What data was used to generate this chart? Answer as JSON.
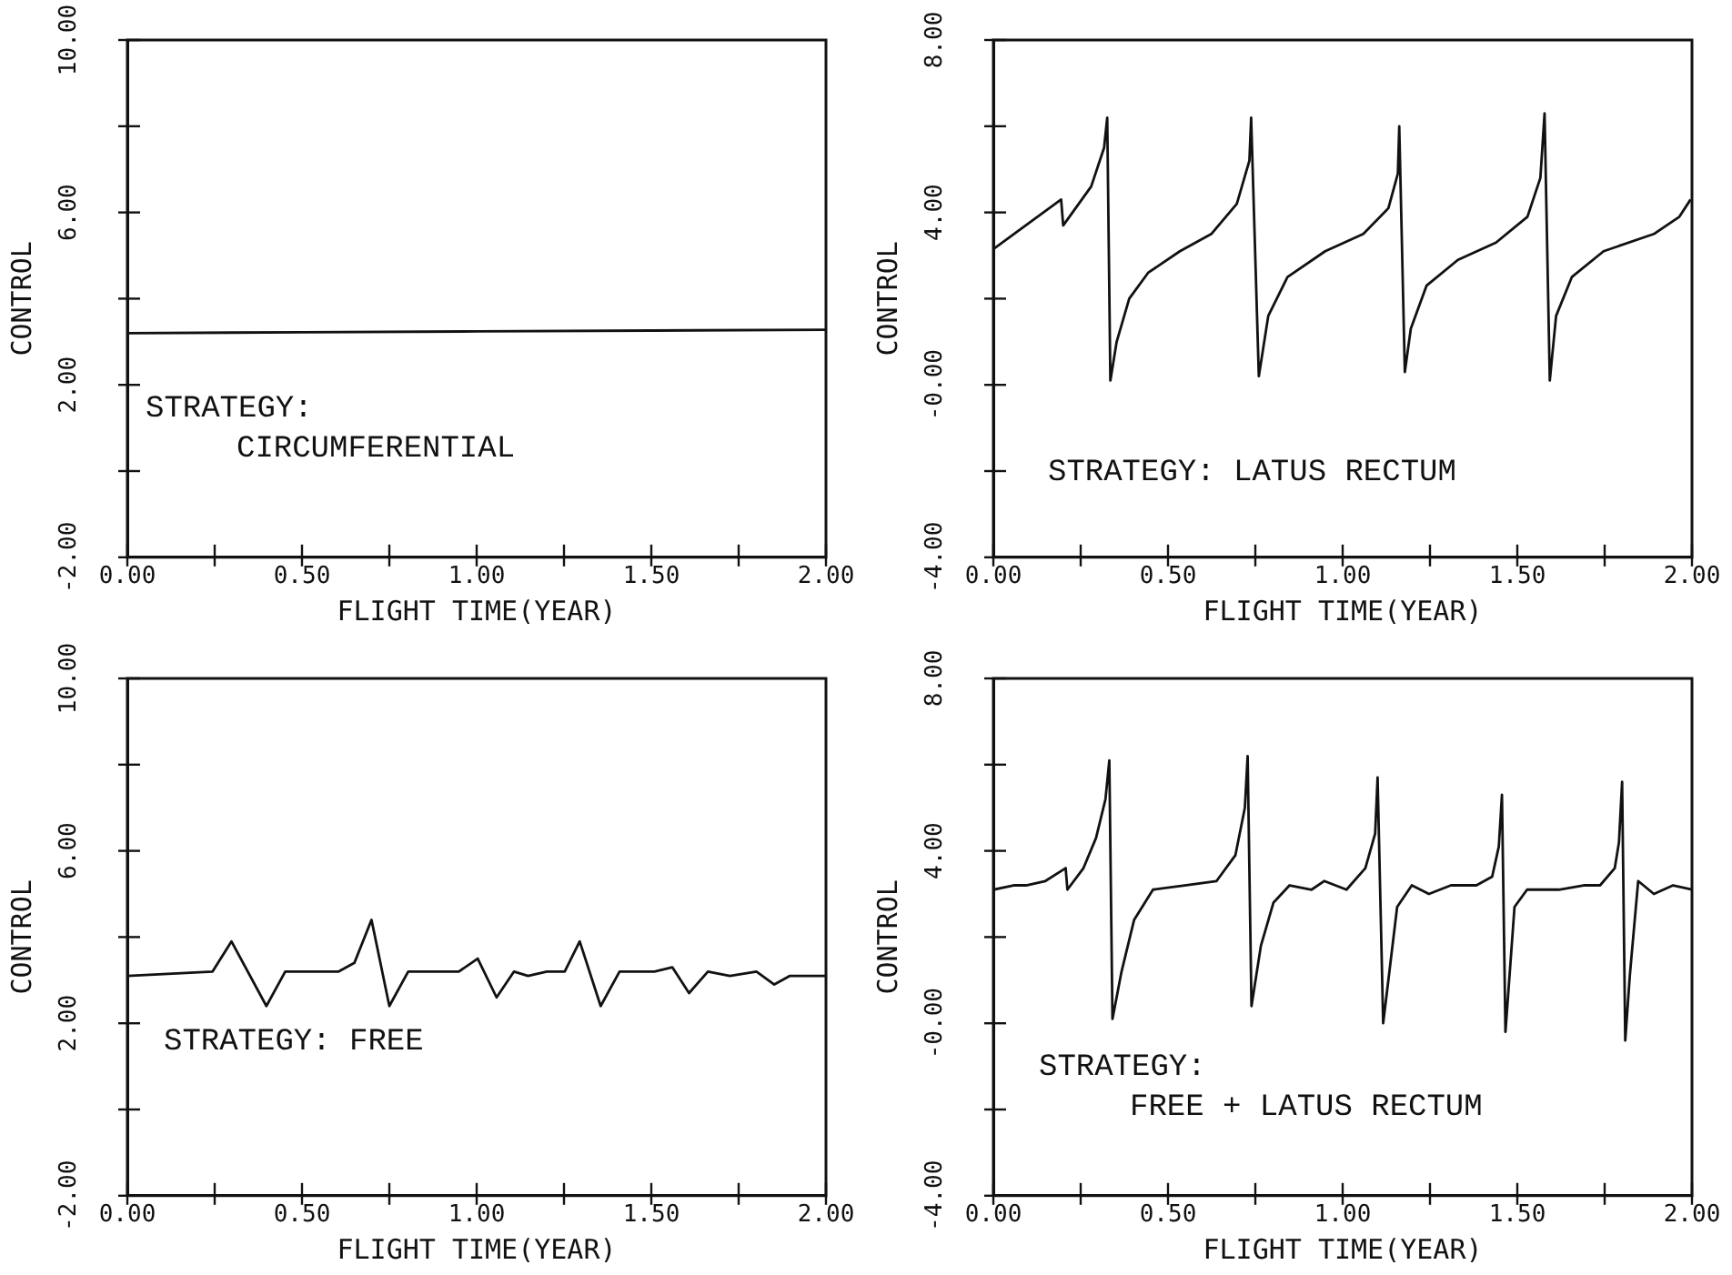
{
  "chart_data": [
    {
      "type": "line",
      "xlabel": "FLIGHT TIME(YEAR)",
      "ylabel": "CONTROL",
      "annotations": [
        "STRATEGY:\nCIRCUMFERENTIAL"
      ],
      "color": "#111111",
      "marker": "none",
      "grid": false,
      "x": [
        0,
        0.5,
        1,
        1.5,
        2
      ],
      "values": [
        3.2,
        3.22,
        3.24,
        3.26,
        3.28
      ],
      "xlim": [
        0,
        2
      ],
      "ylim": [
        -2,
        10
      ],
      "xticks": [
        {
          "value": 0,
          "label": "0.00"
        },
        {
          "value": 0.25,
          "label": null
        },
        {
          "value": 0.5,
          "label": "0.50"
        },
        {
          "value": 0.75,
          "label": null
        },
        {
          "value": 1,
          "label": "1.00"
        },
        {
          "value": 1.25,
          "label": null
        },
        {
          "value": 1.5,
          "label": "1.50"
        },
        {
          "value": 1.75,
          "label": null
        },
        {
          "value": 2,
          "label": "2.00"
        }
      ],
      "yticks": [
        {
          "value": -2,
          "label": "-2.00"
        },
        {
          "value": 0,
          "label": null
        },
        {
          "value": 2,
          "label": "2.00"
        },
        {
          "value": 4,
          "label": null
        },
        {
          "value": 6,
          "label": "6.00"
        },
        {
          "value": 8,
          "label": null
        },
        {
          "value": 10,
          "label": "10.00"
        }
      ]
    },
    {
      "type": "line",
      "xlabel": "FLIGHT TIME(YEAR)",
      "ylabel": "CONTROL",
      "annotations": [
        "STRATEGY: LATUS RECTUM"
      ],
      "color": "#111111",
      "marker": "none",
      "grid": false,
      "x": [
        0,
        0.194,
        0.2,
        0.28,
        0.317,
        0.326,
        0.335,
        0.353,
        0.389,
        0.443,
        0.534,
        0.624,
        0.697,
        0.733,
        0.738,
        0.76,
        0.787,
        0.842,
        0.95,
        1.059,
        1.131,
        1.158,
        1.162,
        1.178,
        1.195,
        1.24,
        1.33,
        1.439,
        1.529,
        1.566,
        1.578,
        1.593,
        1.611,
        1.656,
        1.747,
        1.891,
        1.964,
        1.996
      ],
      "values": [
        3.15,
        4.3,
        3.7,
        4.6,
        5.5,
        6.2,
        0.1,
        1,
        2,
        2.6,
        3.1,
        3.5,
        4.2,
        5.2,
        6.2,
        0.2,
        1.6,
        2.5,
        3.1,
        3.5,
        4.1,
        4.9,
        6,
        0.3,
        1.3,
        2.3,
        2.9,
        3.3,
        3.9,
        4.8,
        6.3,
        0.1,
        1.6,
        2.5,
        3.1,
        3.5,
        3.9,
        4.3
      ],
      "xlim": [
        0,
        2
      ],
      "ylim": [
        -4,
        8
      ],
      "xticks": [
        {
          "value": 0,
          "label": "0.00"
        },
        {
          "value": 0.25,
          "label": null
        },
        {
          "value": 0.5,
          "label": "0.50"
        },
        {
          "value": 0.75,
          "label": null
        },
        {
          "value": 1,
          "label": "1.00"
        },
        {
          "value": 1.25,
          "label": null
        },
        {
          "value": 1.5,
          "label": "1.50"
        },
        {
          "value": 1.75,
          "label": null
        },
        {
          "value": 2,
          "label": "2.00"
        }
      ],
      "yticks": [
        {
          "value": -4,
          "label": "-4.00"
        },
        {
          "value": -2,
          "label": null
        },
        {
          "value": 0,
          "label": "-0.00"
        },
        {
          "value": 2,
          "label": null
        },
        {
          "value": 4,
          "label": "4.00"
        },
        {
          "value": 6,
          "label": null
        },
        {
          "value": 8,
          "label": "8.00"
        }
      ]
    },
    {
      "type": "line",
      "xlabel": "FLIGHT TIME(YEAR)",
      "ylabel": "CONTROL",
      "annotations": [
        "STRATEGY: FREE"
      ],
      "color": "#111111",
      "marker": "none",
      "grid": false,
      "x": [
        0,
        0.244,
        0.298,
        0.398,
        0.452,
        0.605,
        0.65,
        0.699,
        0.75,
        0.804,
        0.949,
        1.003,
        1.057,
        1.107,
        1.147,
        1.201,
        1.252,
        1.295,
        1.355,
        1.409,
        1.509,
        1.56,
        1.608,
        1.662,
        1.725,
        1.801,
        1.852,
        1.897,
        2
      ],
      "values": [
        3.1,
        3.2,
        3.9,
        2.4,
        3.2,
        3.2,
        3.4,
        4.4,
        2.4,
        3.2,
        3.2,
        3.5,
        2.6,
        3.2,
        3.1,
        3.2,
        3.2,
        3.9,
        2.4,
        3.2,
        3.2,
        3.3,
        2.7,
        3.2,
        3.1,
        3.2,
        2.9,
        3.1,
        3.1
      ],
      "xlim": [
        0,
        2
      ],
      "ylim": [
        -2,
        10
      ],
      "xticks": [
        {
          "value": 0,
          "label": "0.00"
        },
        {
          "value": 0.25,
          "label": null
        },
        {
          "value": 0.5,
          "label": "0.50"
        },
        {
          "value": 0.75,
          "label": null
        },
        {
          "value": 1,
          "label": "1.00"
        },
        {
          "value": 1.25,
          "label": null
        },
        {
          "value": 1.5,
          "label": "1.50"
        },
        {
          "value": 1.75,
          "label": null
        },
        {
          "value": 2,
          "label": "2.00"
        }
      ],
      "yticks": [
        {
          "value": -2,
          "label": "-2.00"
        },
        {
          "value": 0,
          "label": null
        },
        {
          "value": 2,
          "label": "2.00"
        },
        {
          "value": 4,
          "label": null
        },
        {
          "value": 6,
          "label": "6.00"
        },
        {
          "value": 8,
          "label": null
        },
        {
          "value": 10,
          "label": "10.00"
        }
      ]
    },
    {
      "type": "line",
      "xlabel": "FLIGHT TIME(YEAR)",
      "ylabel": "CONTROL",
      "annotations": [
        "STRATEGY:\nFREE + LATUS RECTUM"
      ],
      "color": "#111111",
      "marker": "none",
      "grid": false,
      "x": [
        0,
        0.058,
        0.094,
        0.149,
        0.207,
        0.212,
        0.258,
        0.294,
        0.321,
        0.332,
        0.341,
        0.367,
        0.403,
        0.457,
        0.548,
        0.639,
        0.693,
        0.72,
        0.728,
        0.739,
        0.766,
        0.802,
        0.848,
        0.911,
        0.947,
        1.011,
        1.065,
        1.093,
        1.1,
        1.116,
        1.156,
        1.198,
        1.247,
        1.31,
        1.383,
        1.428,
        1.447,
        1.456,
        1.466,
        1.492,
        1.528,
        1.619,
        1.69,
        1.737,
        1.779,
        1.791,
        1.8,
        1.809,
        1.822,
        1.846,
        1.891,
        1.946,
        2
      ],
      "values": [
        3.1,
        3.2,
        3.2,
        3.3,
        3.6,
        3.1,
        3.6,
        4.3,
        5.2,
        6.1,
        0.1,
        1.2,
        2.4,
        3.1,
        3.2,
        3.3,
        3.9,
        5,
        6.2,
        0.4,
        1.8,
        2.8,
        3.2,
        3.1,
        3.3,
        3.1,
        3.6,
        4.4,
        5.7,
        0,
        2.7,
        3.2,
        3,
        3.2,
        3.2,
        3.4,
        4.1,
        5.3,
        -0.2,
        2.7,
        3.1,
        3.1,
        3.2,
        3.2,
        3.6,
        4.2,
        5.6,
        -0.4,
        1.1,
        3.3,
        3,
        3.2,
        3.1
      ],
      "xlim": [
        0,
        2
      ],
      "ylim": [
        -4,
        8
      ],
      "xticks": [
        {
          "value": 0,
          "label": "0.00"
        },
        {
          "value": 0.25,
          "label": null
        },
        {
          "value": 0.5,
          "label": "0.50"
        },
        {
          "value": 0.75,
          "label": null
        },
        {
          "value": 1,
          "label": "1.00"
        },
        {
          "value": 1.25,
          "label": null
        },
        {
          "value": 1.5,
          "label": "1.50"
        },
        {
          "value": 1.75,
          "label": null
        },
        {
          "value": 2,
          "label": "2.00"
        }
      ],
      "yticks": [
        {
          "value": -4,
          "label": "-4.00"
        },
        {
          "value": -2,
          "label": null
        },
        {
          "value": 0,
          "label": "-0.00"
        },
        {
          "value": 2,
          "label": null
        },
        {
          "value": 4,
          "label": "4.00"
        },
        {
          "value": 6,
          "label": null
        },
        {
          "value": 8,
          "label": "8.00"
        }
      ]
    }
  ]
}
